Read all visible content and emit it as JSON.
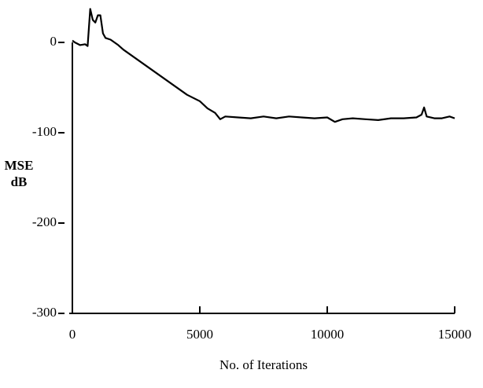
{
  "chart_data": {
    "type": "line",
    "xlabel": "No. of Iterations",
    "ylabel": [
      "MSE",
      "dB"
    ],
    "x": [
      0,
      100,
      300,
      500,
      600,
      700,
      800,
      900,
      1000,
      1100,
      1200,
      1300,
      1500,
      1800,
      2000,
      2500,
      3000,
      3500,
      4000,
      4500,
      5000,
      5300,
      5600,
      5800,
      6000,
      6500,
      7000,
      7500,
      8000,
      8500,
      9000,
      9500,
      10000,
      10300,
      10600,
      11000,
      11500,
      12000,
      12500,
      13000,
      13500,
      13700,
      13800,
      13900,
      14200,
      14500,
      14800,
      15000
    ],
    "values": [
      2,
      0,
      -3,
      -2,
      -4,
      37,
      25,
      22,
      30,
      30,
      10,
      5,
      3,
      -3,
      -8,
      -18,
      -28,
      -38,
      -48,
      -58,
      -65,
      -73,
      -78,
      -85,
      -82,
      -83,
      -84,
      -82,
      -84,
      -82,
      -83,
      -84,
      -83,
      -88,
      -85,
      -84,
      -85,
      -86,
      -84,
      -84,
      -83,
      -80,
      -72,
      -82,
      -84,
      -84,
      -82,
      -84
    ],
    "color": "#000000",
    "xlim": [
      0,
      15000
    ],
    "xticks": [
      0,
      5000,
      10000,
      15000
    ],
    "ylim": [
      -300,
      40
    ],
    "yticks": [
      0,
      -100,
      -200,
      -300
    ]
  }
}
